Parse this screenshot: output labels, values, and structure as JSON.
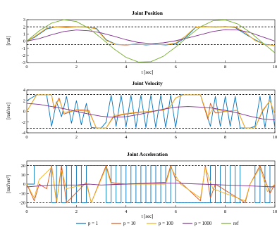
{
  "chart_data": [
    {
      "type": "line",
      "title": "Joint Position",
      "xlabel": "t [sec]",
      "ylabel": "[rad]",
      "xlim": [
        0,
        10
      ],
      "ylim": [
        -3,
        3
      ],
      "xticks": [
        "0",
        "2",
        "4",
        "6",
        "8",
        "10"
      ],
      "yticks": [
        "-3",
        "-2",
        "-1",
        "0",
        "1",
        "2",
        "3"
      ],
      "limits": [
        2,
        -0.5
      ],
      "series": [
        {
          "name": "p = 1",
          "x": [
            0,
            0.3,
            0.8,
            1.2,
            1.6,
            2.0,
            2.4,
            2.8,
            3.2,
            3.6,
            4.0,
            4.4,
            4.8,
            5.2,
            5.6,
            6.0,
            6.4,
            6.8,
            7.2,
            7.6,
            8.0,
            8.4,
            8.8,
            9.2,
            9.6,
            10.0
          ],
          "y": [
            0,
            0.5,
            1.7,
            2.0,
            2.05,
            2.0,
            1.95,
            1.8,
            0.2,
            -0.45,
            -0.55,
            -0.4,
            -0.55,
            -0.45,
            -0.55,
            -0.4,
            0.5,
            1.9,
            2.05,
            1.95,
            2.05,
            1.9,
            1.0,
            0.2,
            -0.45,
            -0.6
          ]
        },
        {
          "name": "p = 10",
          "x": [
            0,
            0.3,
            0.8,
            1.2,
            1.6,
            2.0,
            2.4,
            2.8,
            3.2,
            3.6,
            4.0,
            4.4,
            4.8,
            5.2,
            5.6,
            6.0,
            6.4,
            6.8,
            7.2,
            7.6,
            8.0,
            8.4,
            8.8,
            9.2,
            9.6,
            10.0
          ],
          "y": [
            0,
            0.6,
            1.8,
            2.0,
            1.9,
            2.0,
            2.0,
            1.7,
            0.1,
            -0.5,
            -0.55,
            -0.45,
            -0.5,
            -0.5,
            -0.5,
            -0.3,
            0.7,
            1.95,
            2.0,
            2.0,
            2.0,
            2.0,
            1.2,
            0.1,
            -0.5,
            -0.6
          ]
        },
        {
          "name": "p = 100",
          "x": [
            0,
            0.3,
            0.8,
            1.2,
            1.6,
            2.0,
            2.4,
            2.8,
            3.2,
            3.6,
            4.0,
            4.4,
            4.8,
            5.2,
            5.6,
            6.0,
            6.4,
            6.8,
            7.2,
            7.6,
            8.0,
            8.4,
            8.8,
            9.2,
            9.6,
            10.0
          ],
          "y": [
            0,
            0.6,
            1.8,
            2.0,
            2.0,
            2.0,
            2.0,
            1.7,
            0.1,
            -0.5,
            -0.5,
            -0.5,
            -0.5,
            -0.5,
            -0.5,
            -0.3,
            0.7,
            1.95,
            2.0,
            2.0,
            2.0,
            2.0,
            1.2,
            0.1,
            -0.5,
            -0.6
          ]
        },
        {
          "name": "p = 1000",
          "x": [
            0,
            0.5,
            1.0,
            1.5,
            2.0,
            2.5,
            3.0,
            3.5,
            4.0,
            4.5,
            5.0,
            5.5,
            6.0,
            6.5,
            7.0,
            7.5,
            8.0,
            8.5,
            9.0,
            9.5,
            10.0
          ],
          "y": [
            0,
            0.35,
            0.9,
            1.35,
            1.55,
            1.45,
            1.15,
            0.7,
            0.2,
            -0.2,
            -0.35,
            -0.25,
            0.05,
            0.45,
            0.9,
            1.35,
            1.6,
            1.55,
            1.2,
            0.6,
            0.0
          ]
        },
        {
          "name": "ref",
          "x": [
            0,
            0.5,
            1.0,
            1.5,
            2.0,
            2.5,
            3.0,
            3.5,
            4.0,
            4.5,
            5.0,
            5.5,
            6.0,
            6.5,
            7.0,
            7.5,
            8.0,
            8.5,
            9.0,
            9.5,
            10.0
          ],
          "y": [
            0,
            1.44,
            2.52,
            3.0,
            2.73,
            1.8,
            0.42,
            -1.05,
            -2.27,
            -2.93,
            -2.88,
            -2.13,
            -0.84,
            0.64,
            2.0,
            2.84,
            2.97,
            2.4,
            1.24,
            -0.22,
            -1.63
          ]
        }
      ]
    },
    {
      "type": "line",
      "title": "Joint Velocity",
      "xlabel": "",
      "ylabel": "[rad/sec]",
      "xlim": [
        0,
        10
      ],
      "ylim": [
        -4,
        4
      ],
      "xticks": [
        "0",
        "2",
        "4",
        "6",
        "8",
        "10"
      ],
      "yticks": [
        "-4",
        "-2",
        "0",
        "2",
        "4"
      ],
      "limits": [
        3.14,
        -3.14
      ],
      "series": [
        {
          "name": "p = 1",
          "x": [
            0,
            0.4,
            0.8,
            1.0,
            1.2,
            1.4,
            1.6,
            1.8,
            2.0,
            2.2,
            2.4,
            2.6,
            2.8,
            3.0,
            3.2,
            3.4,
            3.6,
            3.8,
            4.0,
            4.2,
            4.4,
            4.6,
            4.8,
            5.0,
            5.2,
            5.4,
            5.6,
            5.8,
            6.0,
            6.2,
            6.6,
            7.0,
            7.4,
            7.6,
            7.8,
            8.0,
            8.2,
            8.4,
            8.6,
            8.8,
            9.0,
            9.2,
            9.4,
            9.6,
            9.8,
            10.0
          ],
          "y": [
            2.0,
            3.1,
            3.1,
            -2.8,
            1.8,
            -1.0,
            2.8,
            -2.2,
            2.0,
            -2.5,
            1.5,
            -3.0,
            -3.1,
            -3.1,
            -2.0,
            3.0,
            -2.8,
            3.0,
            -2.9,
            3.0,
            -3.0,
            3.0,
            -3.0,
            3.0,
            -3.0,
            3.0,
            -3.0,
            3.0,
            -3.0,
            3.1,
            3.1,
            3.1,
            -2.8,
            2.8,
            -2.8,
            2.8,
            -2.8,
            2.8,
            -3.1,
            -3.1,
            -3.1,
            -2.8,
            2.8,
            -3.0,
            3.0,
            -3.0
          ]
        },
        {
          "name": "p = 10",
          "x": [
            0,
            0.4,
            1.0,
            1.1,
            1.3,
            1.5,
            2.0,
            2.5,
            2.8,
            3.2,
            3.5,
            4.0,
            4.5,
            5.0,
            5.5,
            5.8,
            6.0,
            6.3,
            7.0,
            7.3,
            7.4,
            7.6,
            8.0,
            8.5,
            8.8,
            9.2,
            9.5,
            9.8,
            10.0
          ],
          "y": [
            0,
            3.1,
            3.1,
            0.5,
            2.5,
            -0.5,
            0.3,
            0.2,
            -3.1,
            -3.1,
            -1.0,
            -0.5,
            -0.2,
            0.0,
            0.3,
            1.0,
            2.5,
            3.1,
            3.1,
            -1.5,
            1.5,
            -0.3,
            0.0,
            0.2,
            -3.1,
            -3.1,
            0.0,
            2.0,
            -0.5
          ]
        },
        {
          "name": "p = 100",
          "x": [
            0,
            0.4,
            1.0,
            1.1,
            1.3,
            1.5,
            2.0,
            2.5,
            2.8,
            3.2,
            3.5,
            4.0,
            4.5,
            5.0,
            5.5,
            5.8,
            6.0,
            6.3,
            7.0,
            7.3,
            7.5,
            8.0,
            8.5,
            8.8,
            9.2,
            9.5,
            9.8,
            10.0
          ],
          "y": [
            0,
            3.1,
            3.1,
            0.8,
            2.2,
            -0.2,
            0.2,
            0.0,
            -3.1,
            -3.1,
            -0.8,
            -0.4,
            -0.1,
            0.0,
            0.2,
            1.0,
            2.5,
            3.1,
            3.1,
            -1.0,
            0.5,
            0.0,
            0.2,
            -3.1,
            -3.1,
            0.2,
            2.0,
            -0.5
          ]
        },
        {
          "name": "p = 1000",
          "x": [
            0,
            0.5,
            1.0,
            1.5,
            2.0,
            2.5,
            3.0,
            3.5,
            4.0,
            4.5,
            5.0,
            5.5,
            6.0,
            6.5,
            7.0,
            7.5,
            8.0,
            8.5,
            9.0,
            9.5,
            10.0
          ],
          "y": [
            1.5,
            1.3,
            0.9,
            0.5,
            0.0,
            -0.5,
            -0.9,
            -1.1,
            -1.0,
            -0.6,
            -0.1,
            0.4,
            0.8,
            0.9,
            0.8,
            0.6,
            0.2,
            -0.3,
            -0.9,
            -1.4,
            -1.6
          ]
        }
      ]
    },
    {
      "type": "line",
      "title": "Joint Acceleration",
      "xlabel": "t [sec]",
      "ylabel": "[rad/sec²]",
      "xlim": [
        0,
        10
      ],
      "ylim": [
        -25,
        25
      ],
      "xticks": [
        "0",
        "2",
        "4",
        "6",
        "8",
        "10"
      ],
      "yticks": [
        "-20",
        "-10",
        "0",
        "10",
        "20"
      ],
      "limits": [
        20,
        -20
      ],
      "series": [
        {
          "name": "p = 1",
          "switch_times": [
            0.3,
            1.0,
            1.2,
            1.4,
            1.6,
            1.8,
            2.0,
            2.2,
            2.4,
            3.2,
            3.4,
            3.6,
            3.8,
            4.0,
            4.2,
            4.4,
            4.6,
            4.8,
            5.0,
            5.2,
            5.4,
            5.6,
            5.8,
            6.0,
            7.4,
            7.6,
            7.8,
            8.0,
            8.2,
            8.4,
            8.6,
            9.2,
            9.4,
            9.6,
            9.8
          ],
          "level": 20
        },
        {
          "name": "p = 10",
          "x": [
            0,
            0.3,
            0.5,
            0.8,
            1.0,
            1.2,
            1.4,
            1.6,
            2.4,
            2.6,
            3.2,
            3.4,
            3.6,
            4.0,
            5.6,
            5.8,
            6.0,
            6.2,
            7.0,
            7.2,
            7.4,
            7.6,
            8.8,
            9.0,
            9.4,
            9.6,
            9.8,
            10.0
          ],
          "y": [
            0,
            -18,
            0,
            -5,
            20,
            -20,
            20,
            -20,
            2,
            -20,
            20,
            2,
            1,
            0,
            2,
            20,
            5,
            2,
            -18,
            20,
            -15,
            0,
            -20,
            0,
            20,
            5,
            -10,
            0
          ]
        },
        {
          "name": "p = 100",
          "x": [
            0,
            0.3,
            0.5,
            1.0,
            1.2,
            1.4,
            1.6,
            2.4,
            2.6,
            3.2,
            3.4,
            4.0,
            5.6,
            5.8,
            6.2,
            7.0,
            7.2,
            7.5,
            8.8,
            9.0,
            9.4,
            9.7,
            10.0
          ],
          "y": [
            0,
            -15,
            5,
            18,
            -18,
            15,
            -5,
            0,
            -20,
            18,
            0,
            0,
            0,
            18,
            0,
            -15,
            18,
            -5,
            -18,
            0,
            18,
            -8,
            0
          ]
        },
        {
          "name": "p = 1000",
          "x": [
            0,
            0.5,
            1.0,
            2.0,
            2.5,
            3.0,
            4.0,
            5.0,
            6.0,
            7.0,
            8.0,
            9.0,
            10.0
          ],
          "y": [
            -3,
            -2,
            -1,
            -1,
            0,
            -1,
            0,
            1,
            1,
            0,
            -1,
            -2,
            -3
          ]
        }
      ]
    }
  ],
  "legend": [
    {
      "name": "p = 1",
      "color": "#0072BD"
    },
    {
      "name": "p = 10",
      "color": "#D95319"
    },
    {
      "name": "p = 100",
      "color": "#EDB120"
    },
    {
      "name": "p = 1000",
      "color": "#7E2F8E"
    },
    {
      "name": "ref",
      "color": "#77AC30"
    }
  ]
}
